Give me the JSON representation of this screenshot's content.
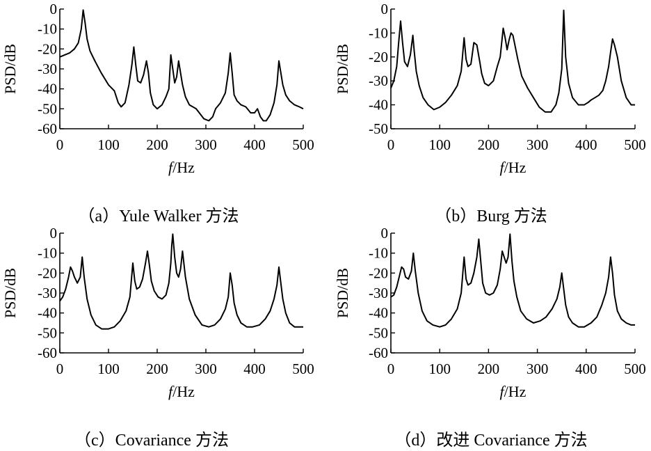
{
  "chart_data": [
    {
      "type": "line",
      "caption": "（a）Yule Walker 方法",
      "xlabel_italic": "f",
      "xlabel_rest": "/Hz",
      "ylabel": "PSD/dB",
      "xlim": [
        0,
        500
      ],
      "ylim": [
        -60,
        0
      ],
      "xticks": [
        0,
        100,
        200,
        300,
        400,
        500
      ],
      "yticks": [
        0,
        -10,
        -20,
        -30,
        -40,
        -50,
        -60
      ],
      "xtick_labels": [
        "0",
        "100",
        "200",
        "300",
        "400",
        "500"
      ],
      "ytick_labels": [
        "0",
        "-10",
        "-20",
        "-30",
        "-40",
        "-50",
        "-60"
      ],
      "series": [
        {
          "x": [
            0,
            10,
            20,
            30,
            38,
            44,
            48,
            52,
            56,
            62,
            72,
            85,
            100,
            112,
            120,
            126,
            134,
            142,
            148,
            152,
            156,
            160,
            166,
            172,
            178,
            182,
            186,
            192,
            200,
            210,
            218,
            224,
            228,
            232,
            236,
            240,
            244,
            248,
            252,
            258,
            266,
            280,
            296,
            306,
            314,
            320,
            330,
            340,
            346,
            350,
            354,
            358,
            364,
            372,
            382,
            392,
            400,
            406,
            412,
            418,
            424,
            432,
            440,
            446,
            450,
            454,
            458,
            464,
            472,
            482,
            492,
            500
          ],
          "y": [
            -24,
            -23,
            -22,
            -20,
            -17,
            -10,
            -0.5,
            -7,
            -15,
            -21,
            -26,
            -32,
            -38,
            -41,
            -47,
            -49,
            -47,
            -38,
            -28,
            -19,
            -28,
            -36,
            -37,
            -33,
            -26,
            -32,
            -42,
            -48,
            -50,
            -48,
            -44,
            -40,
            -23,
            -30,
            -37,
            -34,
            -26,
            -32,
            -38,
            -44,
            -48,
            -50,
            -55,
            -56,
            -54,
            -50,
            -47,
            -42,
            -32,
            -22,
            -32,
            -43,
            -46,
            -48,
            -49,
            -52,
            -52,
            -50,
            -54,
            -56,
            -56,
            -53,
            -47,
            -38,
            -26,
            -32,
            -38,
            -43,
            -46,
            -48,
            -49,
            -50
          ]
        }
      ]
    },
    {
      "type": "line",
      "caption": "（b）Burg 方法",
      "xlabel_italic": "f",
      "xlabel_rest": "/Hz",
      "ylabel": "PSD/dB",
      "xlim": [
        0,
        500
      ],
      "ylim": [
        -50,
        0
      ],
      "xticks": [
        0,
        100,
        200,
        300,
        400,
        500
      ],
      "yticks": [
        0,
        -10,
        -20,
        -30,
        -40,
        -50
      ],
      "xtick_labels": [
        "0",
        "100",
        "200",
        "300",
        "400",
        "500"
      ],
      "ytick_labels": [
        "0",
        "-10",
        "-20",
        "-30",
        "-40",
        "-50"
      ],
      "series": [
        {
          "x": [
            0,
            6,
            12,
            16,
            20,
            24,
            28,
            34,
            40,
            45,
            48,
            52,
            58,
            66,
            76,
            88,
            100,
            112,
            124,
            136,
            144,
            150,
            154,
            158,
            164,
            170,
            176,
            182,
            186,
            192,
            200,
            210,
            218,
            224,
            230,
            234,
            238,
            242,
            246,
            250,
            254,
            260,
            268,
            280,
            292,
            304,
            316,
            328,
            338,
            344,
            350,
            354,
            358,
            364,
            372,
            384,
            396,
            404,
            410,
            418,
            426,
            434,
            440,
            446,
            450,
            454,
            458,
            464,
            472,
            482,
            492,
            500
          ],
          "y": [
            -33,
            -30,
            -24,
            -14,
            -5,
            -14,
            -22,
            -24,
            -19,
            -11,
            -18,
            -26,
            -32,
            -37,
            -40,
            -42,
            -41,
            -39,
            -36,
            -32,
            -26,
            -12,
            -21,
            -24,
            -23,
            -14,
            -15,
            -22,
            -27,
            -31,
            -32,
            -30,
            -24,
            -20,
            -8,
            -12,
            -17,
            -13,
            -10,
            -11,
            -15,
            -21,
            -28,
            -33,
            -37,
            -41,
            -43,
            -43,
            -40,
            -35,
            -25,
            -0.5,
            -20,
            -31,
            -37,
            -40,
            -40,
            -39,
            -38,
            -37,
            -36,
            -34,
            -30,
            -24,
            -18,
            -12.5,
            -15,
            -20,
            -30,
            -37,
            -40,
            -40
          ]
        }
      ]
    },
    {
      "type": "line",
      "caption": "（c）Covariance 方法",
      "xlabel_italic": "f",
      "xlabel_rest": "/Hz",
      "ylabel": "PSD/dB",
      "xlim": [
        0,
        500
      ],
      "ylim": [
        -60,
        0
      ],
      "xticks": [
        0,
        100,
        200,
        300,
        400,
        500
      ],
      "yticks": [
        0,
        -10,
        -20,
        -30,
        -40,
        -50,
        -60
      ],
      "xtick_labels": [
        "0",
        "100",
        "200",
        "300",
        "400",
        "500"
      ],
      "ytick_labels": [
        "0",
        "-10",
        "-20",
        "-30",
        "-40",
        "-50",
        "-60"
      ],
      "series": [
        {
          "x": [
            0,
            6,
            12,
            18,
            22,
            26,
            30,
            36,
            42,
            46,
            50,
            56,
            64,
            74,
            86,
            100,
            112,
            124,
            136,
            144,
            150,
            154,
            158,
            164,
            170,
            176,
            180,
            184,
            188,
            194,
            202,
            210,
            218,
            224,
            228,
            230,
            232,
            236,
            240,
            244,
            248,
            252,
            258,
            266,
            278,
            292,
            306,
            318,
            330,
            340,
            346,
            350,
            354,
            358,
            364,
            372,
            384,
            396,
            410,
            422,
            432,
            440,
            446,
            450,
            454,
            458,
            464,
            472,
            482,
            492,
            500
          ],
          "y": [
            -34,
            -32,
            -28,
            -22,
            -17,
            -19,
            -22,
            -25,
            -22,
            -12,
            -22,
            -33,
            -41,
            -46,
            -48,
            -48,
            -47,
            -44,
            -39,
            -32,
            -15,
            -24,
            -28,
            -27,
            -23,
            -15,
            -9,
            -16,
            -24,
            -29,
            -32,
            -33,
            -31,
            -25,
            -15,
            -6,
            -0.5,
            -12,
            -20,
            -22,
            -18,
            -9,
            -22,
            -33,
            -41,
            -46,
            -47,
            -46,
            -43,
            -38,
            -32,
            -20,
            -26,
            -35,
            -41,
            -45,
            -47,
            -47,
            -46,
            -43,
            -39,
            -33,
            -26,
            -17,
            -25,
            -33,
            -40,
            -45,
            -47,
            -47,
            -47
          ]
        }
      ]
    },
    {
      "type": "line",
      "caption": "（d）改进 Covariance 方法",
      "xlabel_italic": "f",
      "xlabel_rest": "/Hz",
      "ylabel": "PSD/dB",
      "xlim": [
        0,
        500
      ],
      "ylim": [
        -60,
        0
      ],
      "xticks": [
        0,
        100,
        200,
        300,
        400,
        500
      ],
      "yticks": [
        0,
        -10,
        -20,
        -30,
        -40,
        -50,
        -60
      ],
      "xtick_labels": [
        "0",
        "100",
        "200",
        "300",
        "400",
        "500"
      ],
      "ytick_labels": [
        "0",
        "-10",
        "-20",
        "-30",
        "-40",
        "-50",
        "-60"
      ],
      "series": [
        {
          "x": [
            0,
            6,
            12,
            18,
            22,
            26,
            30,
            36,
            42,
            46,
            50,
            56,
            64,
            74,
            86,
            100,
            112,
            124,
            136,
            144,
            150,
            154,
            158,
            164,
            170,
            176,
            180,
            184,
            188,
            194,
            202,
            210,
            218,
            224,
            228,
            232,
            236,
            240,
            244,
            248,
            252,
            258,
            266,
            278,
            292,
            306,
            318,
            330,
            340,
            346,
            350,
            354,
            358,
            364,
            372,
            384,
            396,
            410,
            422,
            432,
            440,
            446,
            450,
            454,
            458,
            464,
            472,
            482,
            492,
            500
          ],
          "y": [
            -32,
            -31,
            -27,
            -21,
            -17,
            -18,
            -22,
            -23,
            -19,
            -10,
            -19,
            -30,
            -39,
            -44,
            -46,
            -47,
            -46,
            -43,
            -38,
            -30,
            -12,
            -23,
            -26,
            -25,
            -20,
            -12,
            -3,
            -14,
            -25,
            -30,
            -31,
            -30,
            -26,
            -18,
            -9,
            -12,
            -15,
            -12,
            -0.5,
            -14,
            -24,
            -32,
            -39,
            -43,
            -45,
            -44,
            -42,
            -38,
            -33,
            -27,
            -20,
            -28,
            -36,
            -42,
            -45,
            -47,
            -47,
            -45,
            -42,
            -36,
            -30,
            -22,
            -12,
            -20,
            -31,
            -39,
            -43,
            -45,
            -46,
            -46
          ]
        }
      ]
    }
  ]
}
